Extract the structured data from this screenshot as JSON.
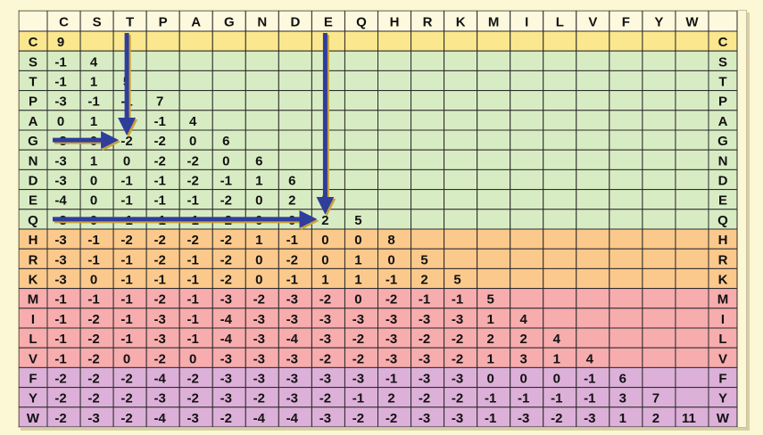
{
  "columns": [
    "C",
    "S",
    "T",
    "P",
    "A",
    "G",
    "N",
    "D",
    "E",
    "Q",
    "H",
    "R",
    "K",
    "M",
    "I",
    "L",
    "V",
    "F",
    "Y",
    "W"
  ],
  "rows": [
    {
      "label": "C",
      "group": "cys",
      "values": [
        "9"
      ]
    },
    {
      "label": "S",
      "group": "small",
      "values": [
        "-1",
        "4"
      ]
    },
    {
      "label": "T",
      "group": "small",
      "values": [
        "-1",
        "1",
        "5"
      ]
    },
    {
      "label": "P",
      "group": "small",
      "values": [
        "-3",
        "-1",
        "-1",
        "7"
      ]
    },
    {
      "label": "A",
      "group": "small",
      "values": [
        "0",
        "1",
        "0",
        "-1",
        "4"
      ]
    },
    {
      "label": "G",
      "group": "small",
      "values": [
        "-3",
        "0",
        "-2",
        "-2",
        "0",
        "6"
      ]
    },
    {
      "label": "N",
      "group": "small",
      "values": [
        "-3",
        "1",
        "0",
        "-2",
        "-2",
        "0",
        "6"
      ]
    },
    {
      "label": "D",
      "group": "small",
      "values": [
        "-3",
        "0",
        "-1",
        "-1",
        "-2",
        "-1",
        "1",
        "6"
      ]
    },
    {
      "label": "E",
      "group": "small",
      "values": [
        "-4",
        "0",
        "-1",
        "-1",
        "-1",
        "-2",
        "0",
        "2",
        "5"
      ]
    },
    {
      "label": "Q",
      "group": "small",
      "values": [
        "-3",
        "0",
        "-1",
        "-1",
        "-1",
        "-2",
        "0",
        "0",
        "2",
        "5"
      ]
    },
    {
      "label": "H",
      "group": "basic",
      "values": [
        "-3",
        "-1",
        "-2",
        "-2",
        "-2",
        "-2",
        "1",
        "-1",
        "0",
        "0",
        "8"
      ]
    },
    {
      "label": "R",
      "group": "basic",
      "values": [
        "-3",
        "-1",
        "-1",
        "-2",
        "-1",
        "-2",
        "0",
        "-2",
        "0",
        "1",
        "0",
        "5"
      ]
    },
    {
      "label": "K",
      "group": "basic",
      "values": [
        "-3",
        "0",
        "-1",
        "-1",
        "-1",
        "-2",
        "0",
        "-1",
        "1",
        "1",
        "-1",
        "2",
        "5"
      ]
    },
    {
      "label": "M",
      "group": "hydrophobic",
      "values": [
        "-1",
        "-1",
        "-1",
        "-2",
        "-1",
        "-3",
        "-2",
        "-3",
        "-2",
        "0",
        "-2",
        "-1",
        "-1",
        "5"
      ]
    },
    {
      "label": "I",
      "group": "hydrophobic",
      "values": [
        "-1",
        "-2",
        "-1",
        "-3",
        "-1",
        "-4",
        "-3",
        "-3",
        "-3",
        "-3",
        "-3",
        "-3",
        "-3",
        "1",
        "4"
      ]
    },
    {
      "label": "L",
      "group": "hydrophobic",
      "values": [
        "-1",
        "-2",
        "-1",
        "-3",
        "-1",
        "-4",
        "-3",
        "-4",
        "-3",
        "-2",
        "-3",
        "-2",
        "-2",
        "2",
        "2",
        "4"
      ]
    },
    {
      "label": "V",
      "group": "hydrophobic",
      "values": [
        "-1",
        "-2",
        "0",
        "-2",
        "0",
        "-3",
        "-3",
        "-3",
        "-2",
        "-2",
        "-3",
        "-3",
        "-2",
        "1",
        "3",
        "1",
        "4"
      ]
    },
    {
      "label": "F",
      "group": "aromatic",
      "values": [
        "-2",
        "-2",
        "-2",
        "-4",
        "-2",
        "-3",
        "-3",
        "-3",
        "-3",
        "-3",
        "-1",
        "-3",
        "-3",
        "0",
        "0",
        "0",
        "-1",
        "6"
      ]
    },
    {
      "label": "Y",
      "group": "aromatic",
      "values": [
        "-2",
        "-2",
        "-2",
        "-3",
        "-2",
        "-3",
        "-2",
        "-3",
        "-2",
        "-1",
        "2",
        "-2",
        "-2",
        "-1",
        "-1",
        "-1",
        "-1",
        "3",
        "7"
      ]
    },
    {
      "label": "W",
      "group": "aromatic",
      "values": [
        "-2",
        "-3",
        "-2",
        "-4",
        "-3",
        "-2",
        "-4",
        "-4",
        "-3",
        "-2",
        "-2",
        "-3",
        "-3",
        "-1",
        "-3",
        "-2",
        "-3",
        "1",
        "2",
        "11"
      ]
    }
  ],
  "group_colors": {
    "header": "#fdf9de",
    "cys": "#fbe78e",
    "small": "#d8ecc4",
    "basic": "#fcc98c",
    "hydrophobic": "#f7acae",
    "aromatic": "#dcb0d8"
  },
  "arrow_color": "#2f3d9b",
  "arrow_shadow": "#c9a23a",
  "arrows": [
    {
      "from": [
        "G",
        "C"
      ],
      "to": [
        "G",
        "T"
      ]
    },
    {
      "from": [
        "Q",
        "C"
      ],
      "to": [
        "Q",
        "E"
      ]
    },
    {
      "from": [
        "C",
        "T"
      ],
      "to": [
        "G",
        "T"
      ]
    },
    {
      "from": [
        "C",
        "E"
      ],
      "to": [
        "Q",
        "E"
      ]
    }
  ]
}
